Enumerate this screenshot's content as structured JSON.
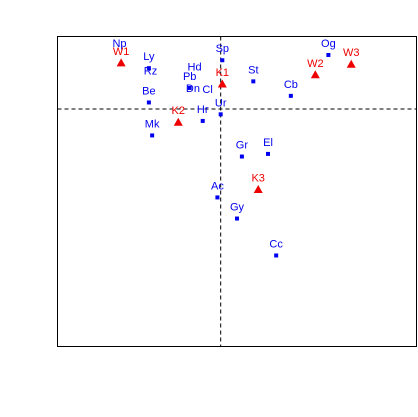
{
  "chart_data": {
    "type": "scatter",
    "title": "",
    "xlabel": "",
    "ylabel": "",
    "grid": false,
    "xlim": [
      -1.0,
      1.2
    ],
    "ylim": [
      -1.8,
      0.55
    ],
    "reference_lines": {
      "x": 0,
      "y": 0
    },
    "colors": {
      "points": "#0000ee",
      "triangles": "#ee0000",
      "reference": "#000000",
      "frame": "#000000"
    },
    "series": [
      {
        "marker": "square",
        "points": [
          {
            "label": "Np",
            "x": -0.62,
            "y": 0.41,
            "labelOnly": true
          },
          {
            "label": "Ly",
            "x": -0.44,
            "y": 0.31
          },
          {
            "label": "Rz",
            "x": -0.43,
            "y": 0.2,
            "labelOnly": true
          },
          {
            "label": "Be",
            "x": -0.44,
            "y": 0.05
          },
          {
            "label": "Sp",
            "x": 0.01,
            "y": 0.37
          },
          {
            "label": "Hd",
            "x": -0.16,
            "y": 0.23,
            "labelOnly": true
          },
          {
            "label": "Pb",
            "x": -0.19,
            "y": 0.16
          },
          {
            "label": "Dn",
            "x": -0.17,
            "y": 0.07,
            "labelOnly": true
          },
          {
            "label": "Cl",
            "x": -0.08,
            "y": 0.06,
            "labelOnly": true
          },
          {
            "label": "Hr",
            "x": -0.11,
            "y": -0.09
          },
          {
            "label": "Ur",
            "x": 0.0,
            "y": -0.04
          },
          {
            "label": "Mk",
            "x": -0.42,
            "y": -0.2
          },
          {
            "label": "St",
            "x": 0.2,
            "y": 0.21
          },
          {
            "label": "Cb",
            "x": 0.43,
            "y": 0.1
          },
          {
            "label": "Og",
            "x": 0.66,
            "y": 0.41
          },
          {
            "label": "Gr",
            "x": 0.13,
            "y": -0.36
          },
          {
            "label": "El",
            "x": 0.29,
            "y": -0.34
          },
          {
            "label": "Ac",
            "x": -0.02,
            "y": -0.67
          },
          {
            "label": "Gy",
            "x": 0.1,
            "y": -0.83
          },
          {
            "label": "Cc",
            "x": 0.34,
            "y": -1.11
          }
        ]
      },
      {
        "marker": "triangle",
        "points": [
          {
            "label": "W1",
            "x": -0.61,
            "y": 0.35
          },
          {
            "label": "K1",
            "x": 0.01,
            "y": 0.19
          },
          {
            "label": "W2",
            "x": 0.58,
            "y": 0.26
          },
          {
            "label": "W3",
            "x": 0.8,
            "y": 0.34
          },
          {
            "label": "K2",
            "x": -0.26,
            "y": -0.1
          },
          {
            "label": "K3",
            "x": 0.23,
            "y": -0.61
          }
        ]
      }
    ]
  }
}
